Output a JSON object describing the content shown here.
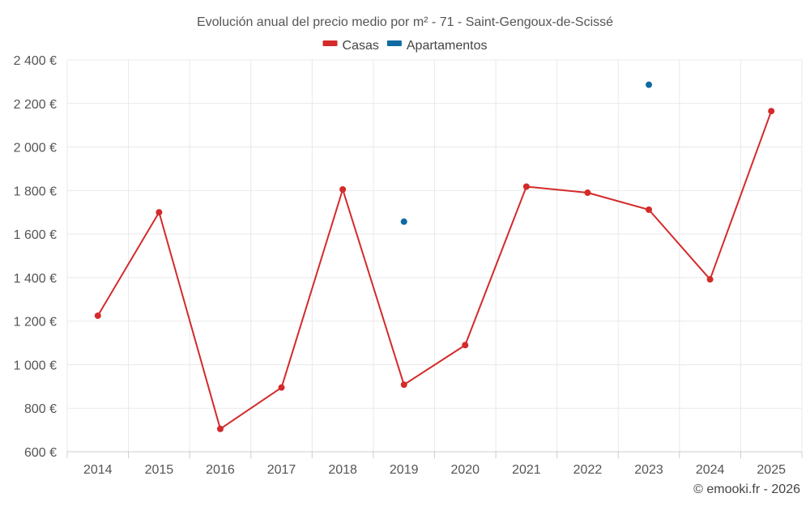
{
  "chart_data": {
    "type": "line",
    "title": "Evolución anual del precio medio por m² - 71 - Saint-Gengoux-de-Scissé",
    "categories": [
      "2014",
      "2015",
      "2016",
      "2017",
      "2018",
      "2019",
      "2020",
      "2021",
      "2022",
      "2023",
      "2024",
      "2025"
    ],
    "series": [
      {
        "name": "Casas",
        "color": "#d42a2a",
        "values": [
          1225,
          1700,
          705,
          895,
          1805,
          908,
          1090,
          1818,
          1790,
          1712,
          1392,
          2165
        ]
      },
      {
        "name": "Apartamentos",
        "color": "#0f6aa3",
        "values": [
          null,
          null,
          null,
          null,
          null,
          1657,
          null,
          null,
          null,
          2286,
          null,
          null
        ]
      }
    ],
    "ylim": [
      600,
      2400
    ],
    "yticks": [
      600,
      800,
      1000,
      1200,
      1400,
      1600,
      1800,
      2000,
      2200,
      2400
    ],
    "ytick_labels": [
      "600 €",
      "800 €",
      "1 000 €",
      "1 200 €",
      "1 400 €",
      "1 600 €",
      "1 800 €",
      "2 000 €",
      "2 200 €",
      "2 400 €"
    ],
    "xlabel": "",
    "ylabel": "",
    "grid": true,
    "legend_position": "top-center"
  },
  "credit": "© emooki.fr - 2026"
}
